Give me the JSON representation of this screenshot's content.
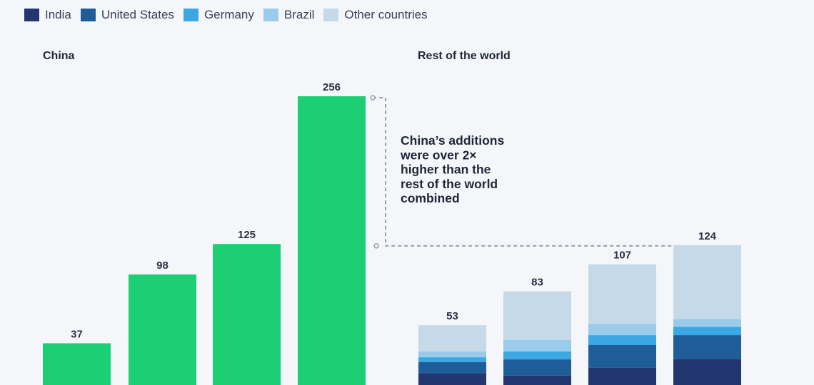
{
  "chart_data": {
    "type": "bar",
    "legend": [
      {
        "name": "India",
        "color": "#22366f"
      },
      {
        "name": "United States",
        "color": "#1f5d99"
      },
      {
        "name": "Germany",
        "color": "#3ba7e3"
      },
      {
        "name": "Brazil",
        "color": "#9bcbea"
      },
      {
        "name": "Other countries",
        "color": "#c5d9e8"
      }
    ],
    "legend_placement": "top-left",
    "panels": [
      {
        "title": "China",
        "color": "#1ccf74",
        "totals": [
          37,
          98,
          125,
          256
        ]
      },
      {
        "title": "Rest of the world",
        "totals": [
          53,
          83,
          107,
          124
        ],
        "series": [
          {
            "name": "India",
            "values": [
              10.5,
              8.4,
              15.4,
              23.2
            ]
          },
          {
            "name": "United States",
            "values": [
              9.9,
              14.3,
              20.0,
              21.0
            ]
          },
          {
            "name": "Germany",
            "values": [
              4.2,
              7.1,
              8.8,
              7.4
            ]
          },
          {
            "name": "Brazil",
            "values": [
              5.3,
              10.1,
              9.9,
              7.0
            ]
          },
          {
            "name": "Other countries",
            "values": [
              23.1,
              43.1,
              52.9,
              65.4
            ]
          }
        ]
      }
    ],
    "annotation": [
      "China’s additions",
      "were over 2×",
      "higher than the",
      "rest of the world",
      "combined"
    ],
    "ylim": [
      0,
      256
    ],
    "grid": false
  }
}
